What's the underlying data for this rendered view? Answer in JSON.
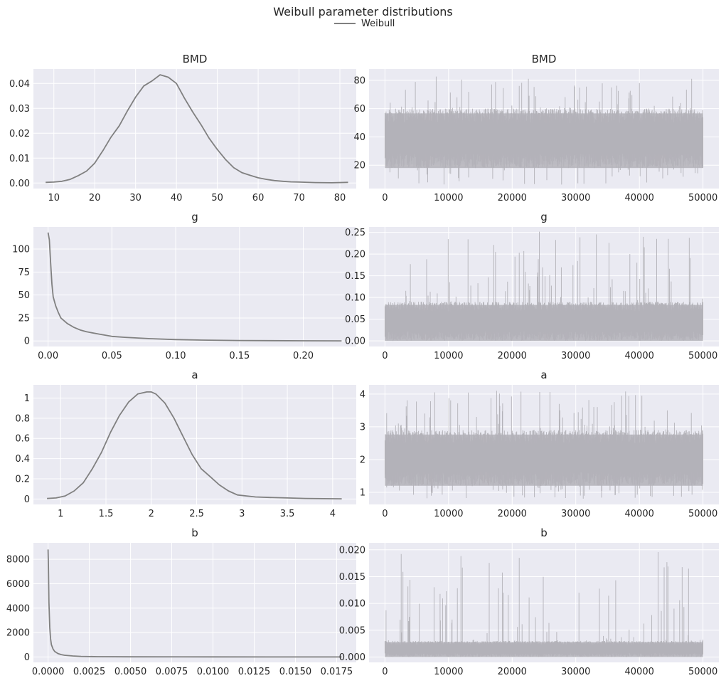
{
  "title": "Weibull parameter distributions",
  "legend": {
    "label": "Weibull",
    "color": "#808080",
    "placement": "top-center"
  },
  "colors": {
    "density_line": "#808080",
    "trace_fill": "#b3b2b8",
    "axes_bg": "#eaeaf2",
    "grid": "#ffffff"
  },
  "chart_data": [
    {
      "type": "line",
      "panel": "density",
      "title": "BMD",
      "xlim": [
        5,
        84
      ],
      "ylim": [
        -0.0022,
        0.0458
      ],
      "xticks": [
        10,
        20,
        30,
        40,
        50,
        60,
        70,
        80
      ],
      "yticks": [
        0.0,
        0.01,
        0.02,
        0.03,
        0.04
      ],
      "ytick_labels": [
        "0.00",
        "0.01",
        "0.02",
        "0.03",
        "0.04"
      ],
      "series": [
        {
          "x": [
            8,
            10,
            12,
            14,
            16,
            18,
            20,
            22,
            24,
            26,
            28,
            30,
            32,
            34,
            36,
            38,
            40,
            42,
            44,
            46,
            48,
            50,
            52,
            54,
            56,
            58,
            60,
            62,
            64,
            66,
            68,
            70,
            74,
            78,
            82
          ],
          "y": [
            0.0003,
            0.0004,
            0.0007,
            0.0015,
            0.003,
            0.0048,
            0.008,
            0.013,
            0.0185,
            0.023,
            0.029,
            0.0345,
            0.039,
            0.041,
            0.0435,
            0.0425,
            0.04,
            0.034,
            0.0285,
            0.0235,
            0.018,
            0.0135,
            0.0095,
            0.0062,
            0.0042,
            0.0031,
            0.0021,
            0.0015,
            0.001,
            0.0007,
            0.0005,
            0.0004,
            0.0002,
            0.0001,
            0.0003
          ]
        }
      ]
    },
    {
      "type": "area",
      "panel": "trace",
      "title": "BMD",
      "xlim": [
        -2500,
        52500
      ],
      "ylim": [
        3.5,
        88
      ],
      "xticks": [
        0,
        10000,
        20000,
        30000,
        40000,
        50000
      ],
      "yticks": [
        20,
        40,
        60,
        80
      ],
      "n_samples": 50000,
      "typical_band": [
        18,
        60
      ],
      "extremes": [
        6,
        84
      ]
    },
    {
      "type": "line",
      "panel": "density",
      "title": "g",
      "xlim": [
        -0.0115,
        0.2415
      ],
      "ylim": [
        -6,
        124
      ],
      "xticks": [
        0.0,
        0.05,
        0.1,
        0.15,
        0.2
      ],
      "xtick_labels": [
        "0.00",
        "0.05",
        "0.10",
        "0.15",
        "0.20"
      ],
      "yticks": [
        0,
        25,
        50,
        75,
        100
      ],
      "series": [
        {
          "x": [
            0.0,
            0.001,
            0.002,
            0.003,
            0.004,
            0.006,
            0.008,
            0.01,
            0.015,
            0.02,
            0.025,
            0.03,
            0.04,
            0.05,
            0.06,
            0.08,
            0.1,
            0.12,
            0.15,
            0.2,
            0.23
          ],
          "y": [
            118,
            110,
            85,
            62,
            48,
            38,
            31,
            25,
            19,
            15,
            12,
            10,
            7.5,
            5,
            4,
            2.5,
            1.5,
            1,
            0.5,
            0.2,
            0.1
          ]
        }
      ]
    },
    {
      "type": "area",
      "panel": "trace",
      "title": "g",
      "xlim": [
        -2500,
        52500
      ],
      "ylim": [
        -0.013,
        0.2625
      ],
      "xticks": [
        0,
        10000,
        20000,
        30000,
        40000,
        50000
      ],
      "yticks": [
        0.0,
        0.05,
        0.1,
        0.15,
        0.2,
        0.25
      ],
      "ytick_labels": [
        "0.00",
        "0.05",
        "0.10",
        "0.15",
        "0.20",
        "0.25"
      ],
      "n_samples": 50000,
      "typical_band": [
        0.0,
        0.09
      ],
      "extremes": [
        0.0,
        0.255
      ]
    },
    {
      "type": "line",
      "panel": "density",
      "title": "a",
      "xlim": [
        0.7,
        4.26
      ],
      "ylim": [
        -0.054,
        1.13
      ],
      "xticks": [
        1.0,
        1.5,
        2.0,
        2.5,
        3.0,
        3.5,
        4.0
      ],
      "yticks": [
        0.0,
        0.2,
        0.4,
        0.6,
        0.8,
        1.0
      ],
      "series": [
        {
          "x": [
            0.85,
            0.95,
            1.05,
            1.15,
            1.25,
            1.35,
            1.45,
            1.55,
            1.65,
            1.75,
            1.85,
            1.95,
            2.0,
            2.05,
            2.15,
            2.25,
            2.35,
            2.45,
            2.55,
            2.65,
            2.75,
            2.85,
            2.95,
            3.05,
            3.15,
            3.3,
            3.5,
            3.7,
            3.9,
            4.1
          ],
          "y": [
            0.005,
            0.01,
            0.03,
            0.08,
            0.16,
            0.3,
            0.46,
            0.66,
            0.83,
            0.96,
            1.04,
            1.06,
            1.06,
            1.04,
            0.95,
            0.8,
            0.62,
            0.44,
            0.3,
            0.22,
            0.14,
            0.08,
            0.04,
            0.03,
            0.02,
            0.015,
            0.01,
            0.005,
            0.003,
            0.002
          ]
        }
      ]
    },
    {
      "type": "area",
      "panel": "trace",
      "title": "a",
      "xlim": [
        -2500,
        52500
      ],
      "ylim": [
        0.63,
        4.28
      ],
      "xticks": [
        0,
        10000,
        20000,
        30000,
        40000,
        50000
      ],
      "yticks": [
        1,
        2,
        3,
        4
      ],
      "n_samples": 50000,
      "typical_band": [
        1.2,
        2.9
      ],
      "extremes": [
        0.8,
        4.1
      ]
    },
    {
      "type": "line",
      "panel": "density",
      "title": "b",
      "xlim": [
        -0.00089,
        0.01869
      ],
      "ylim": [
        -445,
        9350
      ],
      "xticks": [
        0.0,
        0.0025,
        0.005,
        0.0075,
        0.01,
        0.0125,
        0.015,
        0.0175
      ],
      "xtick_labels": [
        "0.0000",
        "0.0025",
        "0.0050",
        "0.0075",
        "0.0100",
        "0.0125",
        "0.0150",
        "0.0175"
      ],
      "yticks": [
        0,
        2000,
        4000,
        6000,
        8000
      ],
      "series": [
        {
          "x": [
            0.0,
            2e-05,
            5e-05,
            0.0001,
            0.00015,
            0.0002,
            0.0003,
            0.0004,
            0.0006,
            0.0008,
            0.001,
            0.0015,
            0.002,
            0.003,
            0.005,
            0.01,
            0.0178
          ],
          "y": [
            8800,
            7500,
            4500,
            2400,
            1500,
            1000,
            650,
            450,
            280,
            190,
            140,
            80,
            45,
            20,
            8,
            2,
            1
          ]
        }
      ]
    },
    {
      "type": "area",
      "panel": "trace",
      "title": "b",
      "xlim": [
        -2500,
        52500
      ],
      "ylim": [
        -0.001,
        0.0213
      ],
      "xticks": [
        0,
        10000,
        20000,
        30000,
        40000,
        50000
      ],
      "yticks": [
        0.0,
        0.005,
        0.01,
        0.015,
        0.02
      ],
      "ytick_labels": [
        "0.000",
        "0.005",
        "0.010",
        "0.015",
        "0.020"
      ],
      "n_samples": 50000,
      "typical_band": [
        0.0,
        0.003
      ],
      "extremes": [
        0.0,
        0.0202
      ]
    }
  ]
}
